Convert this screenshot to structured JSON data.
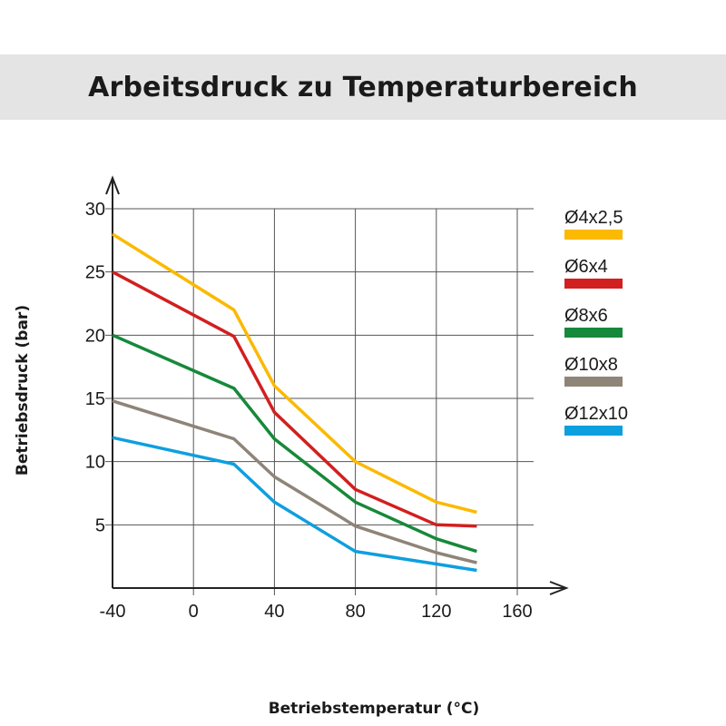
{
  "title": "Arbeitsdruck zu Temperaturbereich",
  "chart_data": {
    "type": "line",
    "title": "Arbeitsdruck zu Temperaturbereich",
    "xlabel": "Betriebstemperatur (°C)",
    "ylabel": "Betriebsdruck (bar)",
    "xlim": [
      -40,
      160
    ],
    "ylim": [
      0,
      30
    ],
    "x_ticks": [
      -40,
      0,
      40,
      80,
      120,
      160
    ],
    "y_ticks": [
      5,
      10,
      15,
      20,
      25,
      30
    ],
    "grid": true,
    "legend_position": "right",
    "series": [
      {
        "name": "Ø4x2,5",
        "color": "#fbb900",
        "points": [
          [
            -40,
            28
          ],
          [
            20,
            22
          ],
          [
            40,
            16
          ],
          [
            80,
            10
          ],
          [
            120,
            6.8
          ],
          [
            140,
            6
          ]
        ]
      },
      {
        "name": "Ø6x4",
        "color": "#d21f1f",
        "points": [
          [
            -40,
            25
          ],
          [
            20,
            19.9
          ],
          [
            40,
            13.9
          ],
          [
            80,
            7.8
          ],
          [
            120,
            5
          ],
          [
            140,
            4.9
          ]
        ]
      },
      {
        "name": "Ø8x6",
        "color": "#16893a",
        "points": [
          [
            -40,
            20
          ],
          [
            20,
            15.8
          ],
          [
            40,
            11.8
          ],
          [
            80,
            6.8
          ],
          [
            120,
            3.9
          ],
          [
            140,
            2.9
          ]
        ]
      },
      {
        "name": "Ø10x8",
        "color": "#8e8478",
        "points": [
          [
            -40,
            14.8
          ],
          [
            20,
            11.8
          ],
          [
            40,
            8.8
          ],
          [
            80,
            4.9
          ],
          [
            120,
            2.8
          ],
          [
            140,
            2
          ]
        ]
      },
      {
        "name": "Ø12x10",
        "color": "#0e9fdf",
        "points": [
          [
            -40,
            11.9
          ],
          [
            20,
            9.8
          ],
          [
            40,
            6.8
          ],
          [
            80,
            2.9
          ],
          [
            120,
            1.9
          ],
          [
            140,
            1.4
          ]
        ]
      }
    ]
  }
}
